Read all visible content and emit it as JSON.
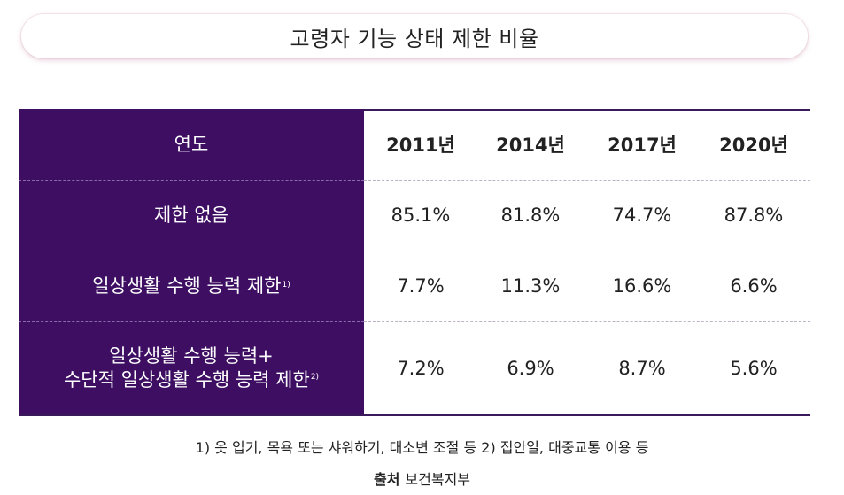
{
  "title": "고령자 기능 상태 제한 비율",
  "table": {
    "header_label": "연도",
    "years": [
      "2011년",
      "2014년",
      "2017년",
      "2020년"
    ],
    "rows": [
      {
        "label_line1": "제한 없음",
        "label_line2": "",
        "sup": "",
        "values": [
          "85.1%",
          "81.8%",
          "74.7%",
          "87.8%"
        ]
      },
      {
        "label_line1": "일상생활 수행 능력 제한",
        "label_line2": "",
        "sup": "1)",
        "values": [
          "7.7%",
          "11.3%",
          "16.6%",
          "6.6%"
        ]
      },
      {
        "label_line1": "일상생활 수행 능력+",
        "label_line2": "수단적 일상생활 수행 능력 제한",
        "sup": "2)",
        "values": [
          "7.2%",
          "6.9%",
          "8.7%",
          "5.6%"
        ]
      }
    ]
  },
  "footnote": "1) 옷 입기, 목욕 또는 샤워하기, 대소변 조절 등 2) 집안일, 대중교통 이용 등",
  "source_label": "출처",
  "source_text": "보건복지부",
  "colors": {
    "header_bg": "#3d0e62",
    "accent_line": "#3a1a5a"
  },
  "chart_data": {
    "type": "table",
    "title": "고령자 기능 상태 제한 비율",
    "columns": [
      "연도",
      "2011년",
      "2014년",
      "2017년",
      "2020년"
    ],
    "rows": [
      [
        "제한 없음",
        "85.1%",
        "81.8%",
        "74.7%",
        "87.8%"
      ],
      [
        "일상생활 수행 능력 제한",
        "7.7%",
        "11.3%",
        "16.6%",
        "6.6%"
      ],
      [
        "일상생활 수행 능력+ 수단적 일상생활 수행 능력 제한",
        "7.2%",
        "6.9%",
        "8.7%",
        "5.6%"
      ]
    ]
  }
}
